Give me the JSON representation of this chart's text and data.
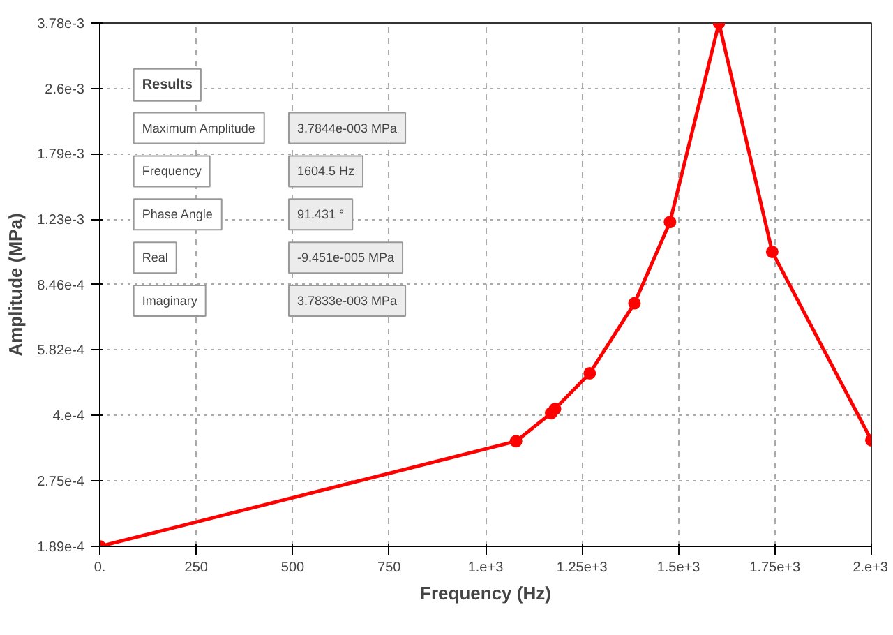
{
  "chart_data": {
    "type": "line",
    "xlabel": "Frequency (Hz)",
    "ylabel": "Amplitude (MPa)",
    "x": [
      0,
      1079,
      1170,
      1180,
      1270,
      1386,
      1478,
      1605,
      1743,
      2000
    ],
    "series": [
      {
        "color": "#ff0000",
        "values": [
          0.000189,
          0.000345,
          0.000405,
          0.000415,
          0.000509,
          0.00076,
          0.00121,
          0.00378,
          0.00102,
          0.000347
        ]
      }
    ],
    "log": "y",
    "xlim": [
      0,
      2000
    ],
    "ylim": [
      0.000189,
      0.00378
    ],
    "xticks": [
      {
        "value": 0,
        "label": "0."
      },
      250,
      500,
      750,
      {
        "value": 1000,
        "label": "1.e+3"
      },
      {
        "value": 1250,
        "label": "1.25e+3"
      },
      {
        "value": 1500,
        "label": "1.5e+3"
      },
      {
        "value": 1750,
        "label": "1.75e+3"
      },
      {
        "value": 2000,
        "label": "2.e+3"
      }
    ],
    "yticks": [
      {
        "value": 0.000189,
        "label": "1.89e-4"
      },
      {
        "value": 0.000275,
        "label": "2.75e-4"
      },
      {
        "value": 0.0004,
        "label": "4.e-4"
      },
      {
        "value": 0.000582,
        "label": "5.82e-4"
      },
      {
        "value": 0.000846,
        "label": "8.46e-4"
      },
      {
        "value": 0.00123,
        "label": "1.23e-3"
      },
      {
        "value": 0.00179,
        "label": "1.79e-3"
      },
      {
        "value": 0.0026,
        "label": "2.6e-3"
      },
      {
        "value": 0.00378,
        "label": "3.78e-3"
      }
    ],
    "grid": true,
    "marker": "circle",
    "line_style": "solid",
    "annotations": [
      "Results",
      "Maximum Amplitude",
      "3.7844e-003 MPa",
      "Frequency",
      "1604.5 Hz",
      "Phase Angle",
      "91.431 °",
      "Real",
      "-9.451e-005 MPa",
      "Imaginary",
      "3.7833e-003 MPa"
    ]
  }
}
